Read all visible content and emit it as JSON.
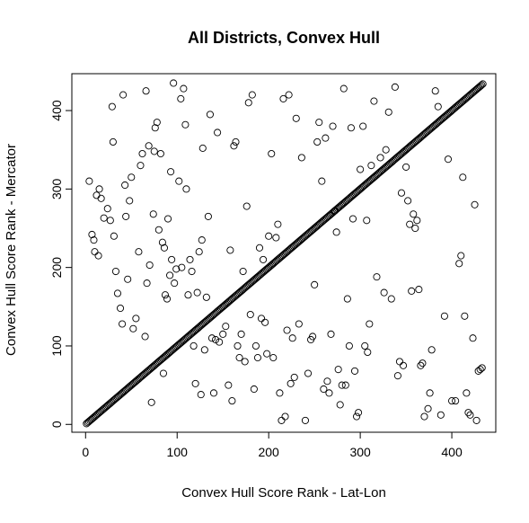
{
  "chart_data": {
    "type": "scatter",
    "title": "All Districts, Convex Hull",
    "xlabel": "Convex Hull Score Rank - Lat-Lon",
    "ylabel": "Convex Hull Score Rank - Mercator",
    "xlim": [
      -15,
      448
    ],
    "ylim": [
      -10,
      447
    ],
    "xticks": [
      0,
      100,
      200,
      300,
      400
    ],
    "yticks": [
      0,
      100,
      200,
      300,
      400
    ],
    "xtick_labels": [
      "0",
      "100",
      "200",
      "300",
      "400"
    ],
    "ytick_labels": [
      "0",
      "100",
      "200",
      "300",
      "400"
    ],
    "grid": false,
    "marker": "open-circle",
    "diagonal": {
      "from": 1,
      "to": 434,
      "step": 1.3
    },
    "points": [
      [
        4,
        310
      ],
      [
        7,
        242
      ],
      [
        9,
        235
      ],
      [
        10,
        220
      ],
      [
        12,
        292
      ],
      [
        14,
        215
      ],
      [
        15,
        300
      ],
      [
        17,
        288
      ],
      [
        20,
        263
      ],
      [
        24,
        275
      ],
      [
        27,
        260
      ],
      [
        29,
        405
      ],
      [
        30,
        360
      ],
      [
        31,
        240
      ],
      [
        33,
        195
      ],
      [
        35,
        167
      ],
      [
        38,
        148
      ],
      [
        40,
        128
      ],
      [
        41,
        420
      ],
      [
        43,
        305
      ],
      [
        44,
        265
      ],
      [
        46,
        185
      ],
      [
        48,
        285
      ],
      [
        50,
        315
      ],
      [
        52,
        122
      ],
      [
        55,
        135
      ],
      [
        58,
        220
      ],
      [
        60,
        330
      ],
      [
        62,
        345
      ],
      [
        65,
        112
      ],
      [
        66,
        425
      ],
      [
        67,
        180
      ],
      [
        69,
        355
      ],
      [
        70,
        203
      ],
      [
        72,
        28
      ],
      [
        74,
        268
      ],
      [
        75,
        348
      ],
      [
        76,
        378
      ],
      [
        78,
        385
      ],
      [
        80,
        248
      ],
      [
        82,
        345
      ],
      [
        84,
        232
      ],
      [
        85,
        65
      ],
      [
        86,
        225
      ],
      [
        87,
        165
      ],
      [
        89,
        160
      ],
      [
        90,
        262
      ],
      [
        92,
        190
      ],
      [
        93,
        322
      ],
      [
        94,
        210
      ],
      [
        96,
        435
      ],
      [
        97,
        180
      ],
      [
        99,
        198
      ],
      [
        102,
        310
      ],
      [
        104,
        415
      ],
      [
        105,
        200
      ],
      [
        107,
        428
      ],
      [
        109,
        382
      ],
      [
        110,
        300
      ],
      [
        112,
        165
      ],
      [
        114,
        210
      ],
      [
        116,
        195
      ],
      [
        118,
        100
      ],
      [
        120,
        52
      ],
      [
        122,
        168
      ],
      [
        124,
        220
      ],
      [
        126,
        38
      ],
      [
        127,
        235
      ],
      [
        128,
        352
      ],
      [
        130,
        95
      ],
      [
        132,
        162
      ],
      [
        134,
        265
      ],
      [
        136,
        395
      ],
      [
        138,
        110
      ],
      [
        140,
        40
      ],
      [
        142,
        108
      ],
      [
        144,
        372
      ],
      [
        146,
        105
      ],
      [
        150,
        115
      ],
      [
        153,
        125
      ],
      [
        156,
        50
      ],
      [
        158,
        222
      ],
      [
        160,
        30
      ],
      [
        162,
        355
      ],
      [
        164,
        360
      ],
      [
        166,
        100
      ],
      [
        168,
        85
      ],
      [
        170,
        115
      ],
      [
        172,
        195
      ],
      [
        174,
        80
      ],
      [
        176,
        278
      ],
      [
        178,
        410
      ],
      [
        180,
        140
      ],
      [
        182,
        420
      ],
      [
        184,
        45
      ],
      [
        186,
        100
      ],
      [
        188,
        85
      ],
      [
        190,
        225
      ],
      [
        192,
        135
      ],
      [
        194,
        210
      ],
      [
        196,
        130
      ],
      [
        198,
        90
      ],
      [
        200,
        240
      ],
      [
        203,
        345
      ],
      [
        205,
        85
      ],
      [
        208,
        238
      ],
      [
        210,
        255
      ],
      [
        212,
        40
      ],
      [
        214,
        5
      ],
      [
        216,
        415
      ],
      [
        218,
        10
      ],
      [
        220,
        120
      ],
      [
        222,
        420
      ],
      [
        224,
        52
      ],
      [
        226,
        110
      ],
      [
        228,
        60
      ],
      [
        230,
        390
      ],
      [
        233,
        128
      ],
      [
        236,
        340
      ],
      [
        240,
        5
      ],
      [
        243,
        65
      ],
      [
        246,
        108
      ],
      [
        248,
        112
      ],
      [
        250,
        178
      ],
      [
        253,
        360
      ],
      [
        255,
        385
      ],
      [
        258,
        310
      ],
      [
        260,
        45
      ],
      [
        262,
        365
      ],
      [
        264,
        55
      ],
      [
        266,
        40
      ],
      [
        268,
        115
      ],
      [
        270,
        380
      ],
      [
        272,
        272
      ],
      [
        274,
        245
      ],
      [
        276,
        70
      ],
      [
        278,
        25
      ],
      [
        280,
        50
      ],
      [
        282,
        428
      ],
      [
        284,
        50
      ],
      [
        286,
        160
      ],
      [
        288,
        100
      ],
      [
        290,
        378
      ],
      [
        292,
        262
      ],
      [
        294,
        68
      ],
      [
        296,
        10
      ],
      [
        298,
        15
      ],
      [
        300,
        325
      ],
      [
        303,
        380
      ],
      [
        305,
        100
      ],
      [
        307,
        260
      ],
      [
        308,
        92
      ],
      [
        310,
        128
      ],
      [
        312,
        330
      ],
      [
        315,
        412
      ],
      [
        318,
        188
      ],
      [
        322,
        340
      ],
      [
        326,
        168
      ],
      [
        328,
        350
      ],
      [
        331,
        398
      ],
      [
        334,
        160
      ],
      [
        338,
        430
      ],
      [
        341,
        62
      ],
      [
        343,
        80
      ],
      [
        345,
        295
      ],
      [
        347,
        75
      ],
      [
        350,
        328
      ],
      [
        352,
        285
      ],
      [
        354,
        255
      ],
      [
        356,
        170
      ],
      [
        358,
        268
      ],
      [
        360,
        250
      ],
      [
        362,
        260
      ],
      [
        364,
        172
      ],
      [
        366,
        75
      ],
      [
        368,
        78
      ],
      [
        370,
        10
      ],
      [
        374,
        20
      ],
      [
        376,
        40
      ],
      [
        378,
        95
      ],
      [
        382,
        425
      ],
      [
        385,
        405
      ],
      [
        388,
        12
      ],
      [
        392,
        138
      ],
      [
        396,
        338
      ],
      [
        400,
        30
      ],
      [
        404,
        30
      ],
      [
        408,
        205
      ],
      [
        410,
        215
      ],
      [
        412,
        315
      ],
      [
        414,
        138
      ],
      [
        416,
        40
      ],
      [
        418,
        15
      ],
      [
        420,
        12
      ],
      [
        423,
        110
      ],
      [
        425,
        280
      ],
      [
        427,
        5
      ],
      [
        429,
        68
      ],
      [
        431,
        70
      ],
      [
        433,
        72
      ]
    ]
  }
}
